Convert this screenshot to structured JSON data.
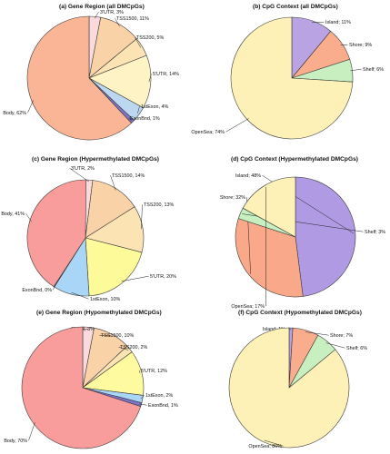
{
  "chart_data": [
    {
      "panel": "(a)",
      "title": "Gene Region (all DMCpGs)",
      "type": "pie",
      "slices": [
        {
          "label": "3'UTR",
          "value": 3,
          "color": "#fadadd"
        },
        {
          "label": "TSS1500",
          "value": 11,
          "color": "#f9d2a8"
        },
        {
          "label": "TSS200",
          "value": 5,
          "color": "#fbe3b3"
        },
        {
          "label": "5'UTR",
          "value": 14,
          "color": "#fdf3c4"
        },
        {
          "label": "1stExon",
          "value": 4,
          "color": "#bcd8f0"
        },
        {
          "label": "ExonBnd",
          "value": 1,
          "color": "#7f74c8"
        },
        {
          "label": "Body",
          "value": 62,
          "color": "#f9b595"
        }
      ]
    },
    {
      "panel": "(b)",
      "title": "CpG Context (all DMCpGs)",
      "type": "pie",
      "slices": [
        {
          "label": "Island",
          "value": 11,
          "color": "#b9a3e3"
        },
        {
          "label": "Shore",
          "value": 9,
          "color": "#f9ad8d"
        },
        {
          "label": "Shelf",
          "value": 6,
          "color": "#c8efc0"
        },
        {
          "label": "OpenSea",
          "value": 74,
          "color": "#fdf1b8"
        }
      ]
    },
    {
      "panel": "(c)",
      "title": "Gene Region (Hypermethylated DMCpGs)",
      "type": "pie",
      "slices": [
        {
          "label": "3'UTR",
          "value": 2,
          "color": "#fadadd"
        },
        {
          "label": "TSS1500",
          "value": 14,
          "color": "#f9d2a8"
        },
        {
          "label": "TSS200",
          "value": 13,
          "color": "#fbe3b3"
        },
        {
          "label": "5'UTR",
          "value": 20,
          "color": "#fdfa9a"
        },
        {
          "label": "1stExon",
          "value": 10,
          "color": "#a9d6f6"
        },
        {
          "label": "ExonBnd",
          "value": 0,
          "color": "#7f74c8"
        },
        {
          "label": "Body",
          "value": 41,
          "color": "#f99c9c"
        }
      ]
    },
    {
      "panel": "(d)",
      "title": "CpG Context (Hypermethylated DMCpGs)",
      "type": "pie",
      "slices": [
        {
          "label": "Island",
          "value": 48,
          "color": "#b09ae3"
        },
        {
          "label": "Shore",
          "value": 32,
          "color": "#f9a98a"
        },
        {
          "label": "Shelf",
          "value": 3,
          "color": "#c8efc0"
        },
        {
          "label": "OpenSea",
          "value": 17,
          "color": "#fdf1b8"
        }
      ]
    },
    {
      "panel": "(e)",
      "title": "Gene Region (Hypomethylated DMCpGs)",
      "type": "pie",
      "slices": [
        {
          "label": "3'UTR",
          "value": 3,
          "color": "#fadadd"
        },
        {
          "label": "TSS1500",
          "value": 10,
          "color": "#f9d2a8"
        },
        {
          "label": "TSS200",
          "value": 2,
          "color": "#fbe3b3"
        },
        {
          "label": "5'UTR",
          "value": 12,
          "color": "#fdfaa0"
        },
        {
          "label": "1stExon",
          "value": 2,
          "color": "#a9d6f6"
        },
        {
          "label": "ExonBnd",
          "value": 1,
          "color": "#7f74c8"
        },
        {
          "label": "Body",
          "value": 70,
          "color": "#f99c9c"
        }
      ]
    },
    {
      "panel": "(f)",
      "title": "CpG Context (Hypomethylated DMCpGs)",
      "type": "pie",
      "slices": [
        {
          "label": "Island",
          "value": 1,
          "color": "#b9a3e3"
        },
        {
          "label": "Shore",
          "value": 7,
          "color": "#f9ad8d"
        },
        {
          "label": "Shelf",
          "value": 6,
          "color": "#c8efc0"
        },
        {
          "label": "OpenSea",
          "value": 86,
          "color": "#fdf1b8"
        }
      ]
    }
  ]
}
